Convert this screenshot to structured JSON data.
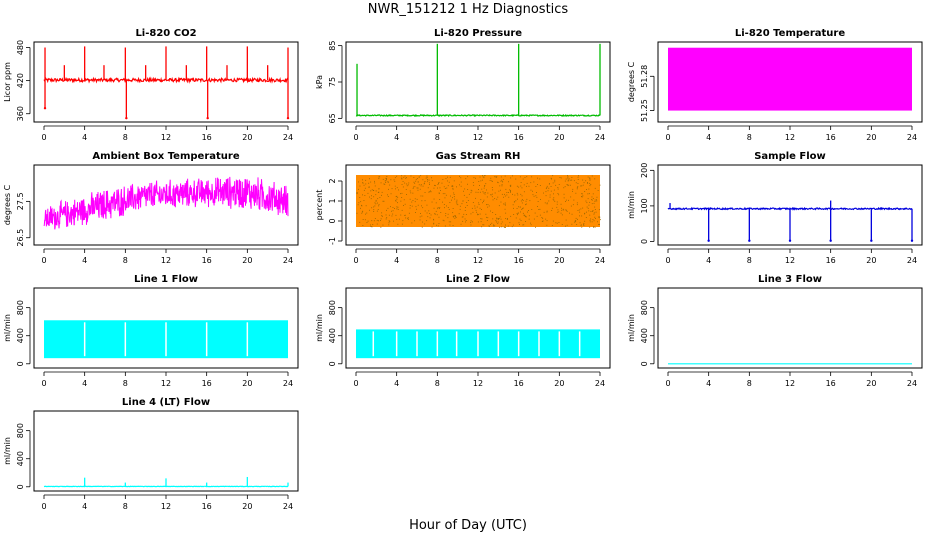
{
  "main_title": "NWR_151212  1 Hz Diagnostics",
  "x_axis_title": "Hour of Day (UTC)",
  "x_ticks": [
    "0",
    "4",
    "8",
    "12",
    "16",
    "20",
    "24"
  ],
  "chart_data": [
    {
      "type": "line",
      "title": "Li-820 CO2",
      "ylabel": "Licor ppm",
      "color": "#ff0000",
      "xlim": [
        0,
        24
      ],
      "ylim": [
        345,
        490
      ],
      "yticks": [
        "360",
        "420",
        "480"
      ],
      "baseline": 421,
      "noise": 3,
      "spikes": [
        {
          "x": 0.1,
          "y": 480
        },
        {
          "x": 2.0,
          "y": 448
        },
        {
          "x": 4.0,
          "y": 482
        },
        {
          "x": 5.9,
          "y": 448
        },
        {
          "x": 8.0,
          "y": 480
        },
        {
          "x": 10.0,
          "y": 448
        },
        {
          "x": 12.0,
          "y": 482
        },
        {
          "x": 14.0,
          "y": 448
        },
        {
          "x": 16.0,
          "y": 482
        },
        {
          "x": 18.0,
          "y": 448
        },
        {
          "x": 20.0,
          "y": 482
        },
        {
          "x": 22.0,
          "y": 448
        },
        {
          "x": 24.0,
          "y": 480
        }
      ],
      "dips": [
        {
          "x": 0.1,
          "y": 370
        },
        {
          "x": 8.1,
          "y": 352
        },
        {
          "x": 16.1,
          "y": 352
        },
        {
          "x": 24.0,
          "y": 352
        }
      ]
    },
    {
      "type": "line",
      "title": "Li-820 Pressure",
      "ylabel": "kPa",
      "color": "#00bb00",
      "xlim": [
        0,
        24
      ],
      "ylim": [
        64,
        86
      ],
      "yticks": [
        "65",
        "75",
        "85"
      ],
      "baseline": 65.8,
      "noise": 0.15,
      "spikes": [
        {
          "x": 0.1,
          "y": 80
        },
        {
          "x": 8.0,
          "y": 85.5
        },
        {
          "x": 16.0,
          "y": 85.5
        },
        {
          "x": 24.0,
          "y": 85.5
        }
      ],
      "dips": []
    },
    {
      "type": "area",
      "title": "Li-820 Temperature",
      "ylabel": "degrees C",
      "color": "#ff00ff",
      "xlim": [
        0,
        24
      ],
      "ylim": [
        51.24,
        51.31
      ],
      "yticks": [
        "51.25",
        "51.28"
      ],
      "band_low": 51.25,
      "band_high": 51.305
    },
    {
      "type": "line",
      "title": "Ambient Box Temperature",
      "ylabel": "degrees C",
      "color": "#ff00ff",
      "xlim": [
        0,
        24
      ],
      "ylim": [
        26.3,
        28.5
      ],
      "yticks": [
        "26.5",
        "27.5"
      ],
      "trend": [
        {
          "x": 0,
          "low": 26.6,
          "high": 27.4
        },
        {
          "x": 6,
          "low": 26.9,
          "high": 27.9
        },
        {
          "x": 10,
          "low": 27.2,
          "high": 28.1
        },
        {
          "x": 16,
          "low": 27.3,
          "high": 28.2
        },
        {
          "x": 20,
          "low": 27.2,
          "high": 28.3
        },
        {
          "x": 24,
          "low": 27.0,
          "high": 28.0
        }
      ]
    },
    {
      "type": "scatter",
      "title": "Gas Stream RH",
      "ylabel": "percent",
      "color": "#ff8c00",
      "dot_color": "#996600",
      "xlim": [
        0,
        24
      ],
      "ylim": [
        -1.2,
        2.8
      ],
      "yticks": [
        "-1",
        "0",
        "1",
        "2"
      ],
      "band_low": -0.3,
      "band_high": 2.3
    },
    {
      "type": "line",
      "title": "Sample Flow",
      "ylabel": "ml/min",
      "color": "#0000dd",
      "xlim": [
        0,
        24
      ],
      "ylim": [
        -10,
        215
      ],
      "yticks": [
        "0",
        "100",
        "200"
      ],
      "baseline": 92,
      "noise": 2,
      "spikes": [
        {
          "x": 0.2,
          "y": 108
        },
        {
          "x": 16.0,
          "y": 115
        }
      ],
      "dips": [
        {
          "x": 4.0,
          "y": 2
        },
        {
          "x": 8.0,
          "y": 2
        },
        {
          "x": 12.0,
          "y": 2
        },
        {
          "x": 16.0,
          "y": 2
        },
        {
          "x": 20.0,
          "y": 2
        },
        {
          "x": 24.0,
          "y": 2
        }
      ]
    },
    {
      "type": "area",
      "title": "Line 1 Flow",
      "ylabel": "ml/min",
      "color": "#00ffff",
      "xlim": [
        0,
        24
      ],
      "ylim": [
        -60,
        1080
      ],
      "yticks": [
        "0",
        "400",
        "800"
      ],
      "band_low": 80,
      "band_high": 620,
      "gaps": [
        4.0,
        8.0,
        12.0,
        16.0,
        20.0
      ]
    },
    {
      "type": "area",
      "title": "Line 2 Flow",
      "ylabel": "ml/min",
      "color": "#00ffff",
      "xlim": [
        0,
        24
      ],
      "ylim": [
        -60,
        1080
      ],
      "yticks": [
        "0",
        "400",
        "800"
      ],
      "band_low": 80,
      "band_high": 490,
      "gaps": [
        1.7,
        4.0,
        6.0,
        8.0,
        9.9,
        12.0,
        14.0,
        16.0,
        18.0,
        20.0,
        22.0
      ]
    },
    {
      "type": "line",
      "title": "Line 3 Flow",
      "ylabel": "ml/min",
      "color": "#00ffff",
      "xlim": [
        0,
        24
      ],
      "ylim": [
        -60,
        1080
      ],
      "yticks": [
        "0",
        "400",
        "800"
      ],
      "baseline": 0,
      "noise": 0,
      "spikes": [],
      "dips": []
    },
    {
      "type": "line",
      "title": "Line 4 (LT) Flow",
      "ylabel": "ml/min",
      "color": "#00ffff",
      "xlim": [
        0,
        24
      ],
      "ylim": [
        -60,
        1080
      ],
      "yticks": [
        "0",
        "400",
        "800"
      ],
      "baseline": 5,
      "noise": 3,
      "spikes": [
        {
          "x": 4.0,
          "y": 130
        },
        {
          "x": 8.0,
          "y": 60
        },
        {
          "x": 12.0,
          "y": 120
        },
        {
          "x": 16.0,
          "y": 60
        },
        {
          "x": 20.0,
          "y": 140
        },
        {
          "x": 24.0,
          "y": 60
        }
      ],
      "dips": []
    }
  ]
}
